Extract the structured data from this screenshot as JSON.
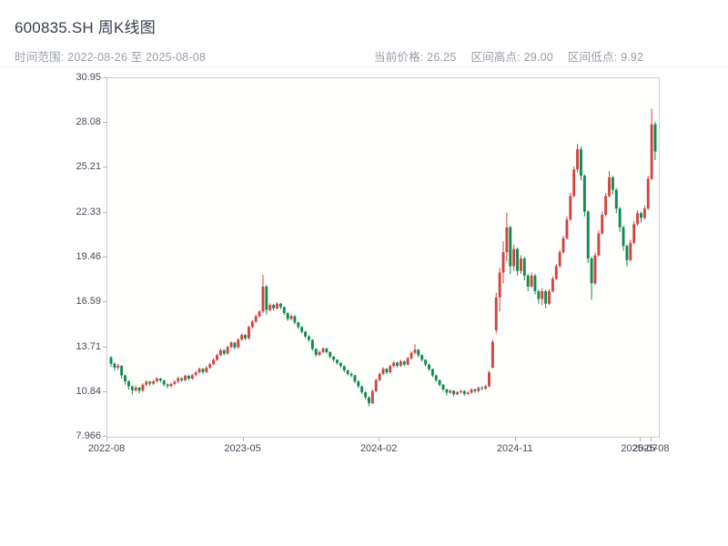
{
  "header": {
    "title": "600835.SH 周K线图"
  },
  "stats": {
    "time_range_label": "时间范围:",
    "time_range_value": "2022-08-26 至 2025-08-08",
    "current_price_label": "当前价格:",
    "current_price_value": "26.25",
    "range_high_label": "区间高点:",
    "range_high_value": "29.00",
    "range_low_label": "区间低点:",
    "range_low_value": "9.92"
  },
  "chart_data": {
    "type": "candlestick",
    "title": "600835.SH 周K线图",
    "interval": "weekly",
    "time_range": "2022-08-26 至 2025-08-08",
    "current_price": 26.25,
    "range_high": 29.0,
    "range_low": 9.92,
    "grid": false,
    "legend": false,
    "up_color": "#d0453e",
    "down_color": "#108a4e",
    "ylim": [
      7.966,
      30.95
    ],
    "y_ticks": [
      "7.966",
      "10.84",
      "13.71",
      "16.59",
      "19.46",
      "22.33",
      "25.21",
      "28.08",
      "30.95"
    ],
    "x_ticks": [
      {
        "label": "2022-08",
        "pos": 0.0
      },
      {
        "label": "2023-05",
        "pos": 0.246
      },
      {
        "label": "2024-02",
        "pos": 0.492
      },
      {
        "label": "2024-11",
        "pos": 0.738
      },
      {
        "label": "2025-07",
        "pos": 0.963
      },
      {
        "label": "2025-08",
        "pos": 0.984
      }
    ],
    "ohlc_format": [
      "open",
      "high",
      "low",
      "close"
    ],
    "candles": [
      [
        13.05,
        13.15,
        12.45,
        12.65
      ],
      [
        12.65,
        12.75,
        12.2,
        12.4
      ],
      [
        12.4,
        12.65,
        12.25,
        12.52
      ],
      [
        12.52,
        12.55,
        11.7,
        11.9
      ],
      [
        11.9,
        11.95,
        11.3,
        11.52
      ],
      [
        11.52,
        11.6,
        11.0,
        11.2
      ],
      [
        11.2,
        11.25,
        10.68,
        10.95
      ],
      [
        10.95,
        11.25,
        10.85,
        11.12
      ],
      [
        11.12,
        11.18,
        10.75,
        10.92
      ],
      [
        10.92,
        11.4,
        10.85,
        11.3
      ],
      [
        11.3,
        11.6,
        11.2,
        11.5
      ],
      [
        11.5,
        11.55,
        11.22,
        11.38
      ],
      [
        11.38,
        11.62,
        11.28,
        11.52
      ],
      [
        11.52,
        11.8,
        11.45,
        11.7
      ],
      [
        11.7,
        11.75,
        11.45,
        11.58
      ],
      [
        11.58,
        11.62,
        11.2,
        11.32
      ],
      [
        11.32,
        11.4,
        11.08,
        11.22
      ],
      [
        11.22,
        11.45,
        11.12,
        11.35
      ],
      [
        11.35,
        11.6,
        11.25,
        11.5
      ],
      [
        11.5,
        11.82,
        11.42,
        11.72
      ],
      [
        11.72,
        11.78,
        11.48,
        11.6
      ],
      [
        11.6,
        11.95,
        11.52,
        11.88
      ],
      [
        11.88,
        11.92,
        11.58,
        11.7
      ],
      [
        11.7,
        12.0,
        11.62,
        11.92
      ],
      [
        11.92,
        12.2,
        11.85,
        12.1
      ],
      [
        12.1,
        12.4,
        12.02,
        12.32
      ],
      [
        12.32,
        12.38,
        12.0,
        12.12
      ],
      [
        12.12,
        12.5,
        12.05,
        12.4
      ],
      [
        12.4,
        12.72,
        12.32,
        12.62
      ],
      [
        12.62,
        13.0,
        12.55,
        12.9
      ],
      [
        12.9,
        13.3,
        12.82,
        13.2
      ],
      [
        13.2,
        13.62,
        13.12,
        13.52
      ],
      [
        13.52,
        13.58,
        13.18,
        13.3
      ],
      [
        13.3,
        13.82,
        13.22,
        13.72
      ],
      [
        13.72,
        14.1,
        13.65,
        14.0
      ],
      [
        14.0,
        14.05,
        13.58,
        13.7
      ],
      [
        13.7,
        14.3,
        13.62,
        14.2
      ],
      [
        14.2,
        14.6,
        14.12,
        14.5
      ],
      [
        14.5,
        14.55,
        14.15,
        14.28
      ],
      [
        14.28,
        15.1,
        14.2,
        15.0
      ],
      [
        15.0,
        15.45,
        14.9,
        15.35
      ],
      [
        15.35,
        15.8,
        15.25,
        15.7
      ],
      [
        15.7,
        16.1,
        15.6,
        16.0
      ],
      [
        16.0,
        18.35,
        15.9,
        17.6
      ],
      [
        17.6,
        17.7,
        15.8,
        16.1
      ],
      [
        16.1,
        16.52,
        16.02,
        16.42
      ],
      [
        16.42,
        16.48,
        16.05,
        16.2
      ],
      [
        16.2,
        16.6,
        16.12,
        16.5
      ],
      [
        16.5,
        16.55,
        16.15,
        16.28
      ],
      [
        16.28,
        16.32,
        15.78,
        15.9
      ],
      [
        15.9,
        15.95,
        15.4,
        15.52
      ],
      [
        15.52,
        15.8,
        15.42,
        15.7
      ],
      [
        15.7,
        15.75,
        15.18,
        15.3
      ],
      [
        15.3,
        15.35,
        14.88,
        15.0
      ],
      [
        15.0,
        15.05,
        14.58,
        14.7
      ],
      [
        14.7,
        14.75,
        14.28,
        14.4
      ],
      [
        14.4,
        14.48,
        14.05,
        14.18
      ],
      [
        14.18,
        14.22,
        13.48,
        13.6
      ],
      [
        13.6,
        13.65,
        13.1,
        13.22
      ],
      [
        13.22,
        13.5,
        13.12,
        13.4
      ],
      [
        13.4,
        13.72,
        13.32,
        13.62
      ],
      [
        13.62,
        13.68,
        13.3,
        13.4
      ],
      [
        13.4,
        13.45,
        12.98,
        13.1
      ],
      [
        13.1,
        13.15,
        12.78,
        12.9
      ],
      [
        12.9,
        12.95,
        12.58,
        12.7
      ],
      [
        12.7,
        12.75,
        12.38,
        12.5
      ],
      [
        12.5,
        12.55,
        12.1,
        12.22
      ],
      [
        12.22,
        12.28,
        11.88,
        12.0
      ],
      [
        12.0,
        12.1,
        11.78,
        11.9
      ],
      [
        11.9,
        11.95,
        11.4,
        11.52
      ],
      [
        11.52,
        11.58,
        11.08,
        11.2
      ],
      [
        11.2,
        11.25,
        10.7,
        10.82
      ],
      [
        10.82,
        10.88,
        10.38,
        10.5
      ],
      [
        10.5,
        10.55,
        9.92,
        10.12
      ],
      [
        10.12,
        11.0,
        10.05,
        10.9
      ],
      [
        10.9,
        11.7,
        10.82,
        11.6
      ],
      [
        11.6,
        12.1,
        11.52,
        12.0
      ],
      [
        12.0,
        12.42,
        11.92,
        12.32
      ],
      [
        12.32,
        12.38,
        11.98,
        12.1
      ],
      [
        12.1,
        12.6,
        12.02,
        12.5
      ],
      [
        12.5,
        12.82,
        12.42,
        12.72
      ],
      [
        12.72,
        12.78,
        12.4,
        12.52
      ],
      [
        12.52,
        12.9,
        12.45,
        12.8
      ],
      [
        12.8,
        12.85,
        12.48,
        12.6
      ],
      [
        12.6,
        13.1,
        12.52,
        13.0
      ],
      [
        13.0,
        13.45,
        12.92,
        13.35
      ],
      [
        13.35,
        13.9,
        13.25,
        13.55
      ],
      [
        13.55,
        13.6,
        13.05,
        13.2
      ],
      [
        13.2,
        13.25,
        12.78,
        12.9
      ],
      [
        12.9,
        12.95,
        12.48,
        12.6
      ],
      [
        12.6,
        12.65,
        12.18,
        12.3
      ],
      [
        12.3,
        12.35,
        11.78,
        11.9
      ],
      [
        11.9,
        11.95,
        11.48,
        11.6
      ],
      [
        11.6,
        11.65,
        11.18,
        11.3
      ],
      [
        11.3,
        11.35,
        10.88,
        11.0
      ],
      [
        11.0,
        11.05,
        10.62,
        10.8
      ],
      [
        10.8,
        11.0,
        10.72,
        10.92
      ],
      [
        10.92,
        10.96,
        10.55,
        10.7
      ],
      [
        10.7,
        10.9,
        10.62,
        10.82
      ],
      [
        10.82,
        10.98,
        10.74,
        10.9
      ],
      [
        10.9,
        10.95,
        10.6,
        10.72
      ],
      [
        10.72,
        10.88,
        10.64,
        10.8
      ],
      [
        10.8,
        11.08,
        10.72,
        11.0
      ],
      [
        11.0,
        11.05,
        10.78,
        10.9
      ],
      [
        10.9,
        11.18,
        10.82,
        11.1
      ],
      [
        11.1,
        11.22,
        10.95,
        11.05
      ],
      [
        11.05,
        11.3,
        10.98,
        11.2
      ],
      [
        11.2,
        12.2,
        11.15,
        12.1
      ],
      [
        12.4,
        14.2,
        12.35,
        14.05
      ],
      [
        14.8,
        17.2,
        14.6,
        16.9
      ],
      [
        16.9,
        18.8,
        16.0,
        18.5
      ],
      [
        18.5,
        20.5,
        17.8,
        19.8
      ],
      [
        19.8,
        22.33,
        19.2,
        21.4
      ],
      [
        21.4,
        21.5,
        18.4,
        18.9
      ],
      [
        18.9,
        20.3,
        18.6,
        20.0
      ],
      [
        20.0,
        20.1,
        18.3,
        18.6
      ],
      [
        18.6,
        19.6,
        18.4,
        19.4
      ],
      [
        19.4,
        19.5,
        18.0,
        18.3
      ],
      [
        18.3,
        18.4,
        17.3,
        17.6
      ],
      [
        17.6,
        18.5,
        17.5,
        18.3
      ],
      [
        18.3,
        18.4,
        17.1,
        17.3
      ],
      [
        17.3,
        17.4,
        16.5,
        16.8
      ],
      [
        16.8,
        17.5,
        16.4,
        17.3
      ],
      [
        17.3,
        17.4,
        16.2,
        16.5
      ],
      [
        16.5,
        17.45,
        16.4,
        17.3
      ],
      [
        17.3,
        18.25,
        17.2,
        18.1
      ],
      [
        18.1,
        19.05,
        18.0,
        18.9
      ],
      [
        18.9,
        19.95,
        18.8,
        19.8
      ],
      [
        19.8,
        20.85,
        19.7,
        20.7
      ],
      [
        20.7,
        22.1,
        20.6,
        21.9
      ],
      [
        21.9,
        23.6,
        21.8,
        23.4
      ],
      [
        23.4,
        25.3,
        23.3,
        25.1
      ],
      [
        25.1,
        26.75,
        24.9,
        26.4
      ],
      [
        26.4,
        26.55,
        24.4,
        24.7
      ],
      [
        24.7,
        24.8,
        22.1,
        22.4
      ],
      [
        22.4,
        22.5,
        19.1,
        19.4
      ],
      [
        19.4,
        19.5,
        16.75,
        17.8
      ],
      [
        17.8,
        19.8,
        17.7,
        19.6
      ],
      [
        19.6,
        21.2,
        19.5,
        21.0
      ],
      [
        21.0,
        22.4,
        20.9,
        22.2
      ],
      [
        22.2,
        23.6,
        22.1,
        23.4
      ],
      [
        23.4,
        25.0,
        23.3,
        24.6
      ],
      [
        24.6,
        24.7,
        23.5,
        23.8
      ],
      [
        23.8,
        23.9,
        22.3,
        22.6
      ],
      [
        22.6,
        22.7,
        21.1,
        21.4
      ],
      [
        21.4,
        21.5,
        19.9,
        20.2
      ],
      [
        20.2,
        20.3,
        18.9,
        19.3
      ],
      [
        19.3,
        20.6,
        19.2,
        20.4
      ],
      [
        20.4,
        21.8,
        20.3,
        21.6
      ],
      [
        21.6,
        22.5,
        21.5,
        22.3
      ],
      [
        22.3,
        22.4,
        21.7,
        22.0
      ],
      [
        22.0,
        22.8,
        21.9,
        22.6
      ],
      [
        22.6,
        24.7,
        22.5,
        24.5
      ],
      [
        24.5,
        29.0,
        24.4,
        28.0
      ],
      [
        28.0,
        28.15,
        25.7,
        26.25
      ]
    ]
  }
}
